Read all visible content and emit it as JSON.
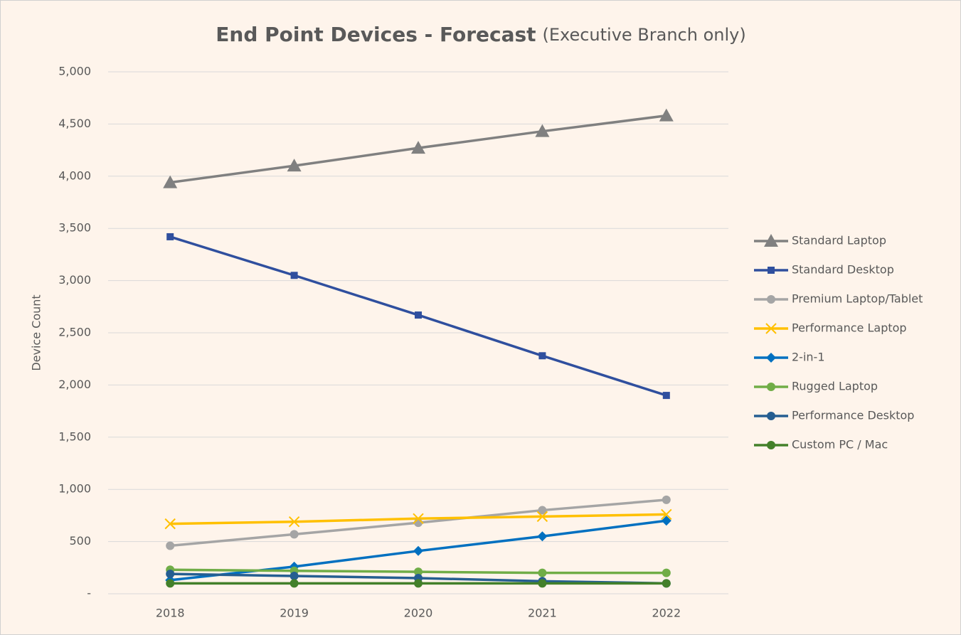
{
  "chart_data": {
    "type": "line",
    "title": "End Point Devices - Forecast",
    "subtitle": "(Executive Branch only)",
    "y_label": "Device Count",
    "categories": [
      "2018",
      "2019",
      "2020",
      "2021",
      "2022"
    ],
    "ylim": [
      0,
      5000
    ],
    "yticks": [
      {
        "value": 0,
        "label": "-"
      },
      500,
      {
        "value": 1000,
        "label": "1,000"
      },
      {
        "value": 1500,
        "label": "1,500"
      },
      {
        "value": 2000,
        "label": "2,000"
      },
      {
        "value": 2500,
        "label": "2,500"
      },
      {
        "value": 3000,
        "label": "3,000"
      },
      {
        "value": 3500,
        "label": "3,500"
      },
      {
        "value": 4000,
        "label": "4,000"
      },
      {
        "value": 4500,
        "label": "4,500"
      },
      {
        "value": 5000,
        "label": "5,000"
      }
    ],
    "grid": true,
    "legend": "right",
    "series": [
      {
        "name": "Standard Laptop",
        "color": "#808080",
        "marker": "triangle",
        "values": [
          3940,
          4100,
          4270,
          4430,
          4580
        ]
      },
      {
        "name": "Standard Desktop",
        "color": "#2f4f9e",
        "marker": "square",
        "values": [
          3420,
          3050,
          2670,
          2280,
          1900
        ]
      },
      {
        "name": "Premium Laptop/Tablet",
        "color": "#a5a5a5",
        "marker": "circle",
        "values": [
          460,
          570,
          680,
          800,
          900
        ]
      },
      {
        "name": "Performance Laptop",
        "color": "#ffc000",
        "marker": "x",
        "values": [
          670,
          690,
          720,
          740,
          760
        ]
      },
      {
        "name": "2-in-1",
        "color": "#0070c0",
        "marker": "diamond",
        "values": [
          130,
          260,
          410,
          550,
          700
        ]
      },
      {
        "name": "Rugged Laptop",
        "color": "#70ad47",
        "marker": "circle",
        "values": [
          230,
          220,
          210,
          200,
          200
        ]
      },
      {
        "name": "Performance Desktop",
        "color": "#255e91",
        "marker": "circle",
        "values": [
          190,
          170,
          150,
          120,
          100
        ]
      },
      {
        "name": "Custom PC / Mac",
        "color": "#43802a",
        "marker": "circle",
        "values": [
          100,
          100,
          100,
          100,
          100
        ]
      }
    ]
  }
}
